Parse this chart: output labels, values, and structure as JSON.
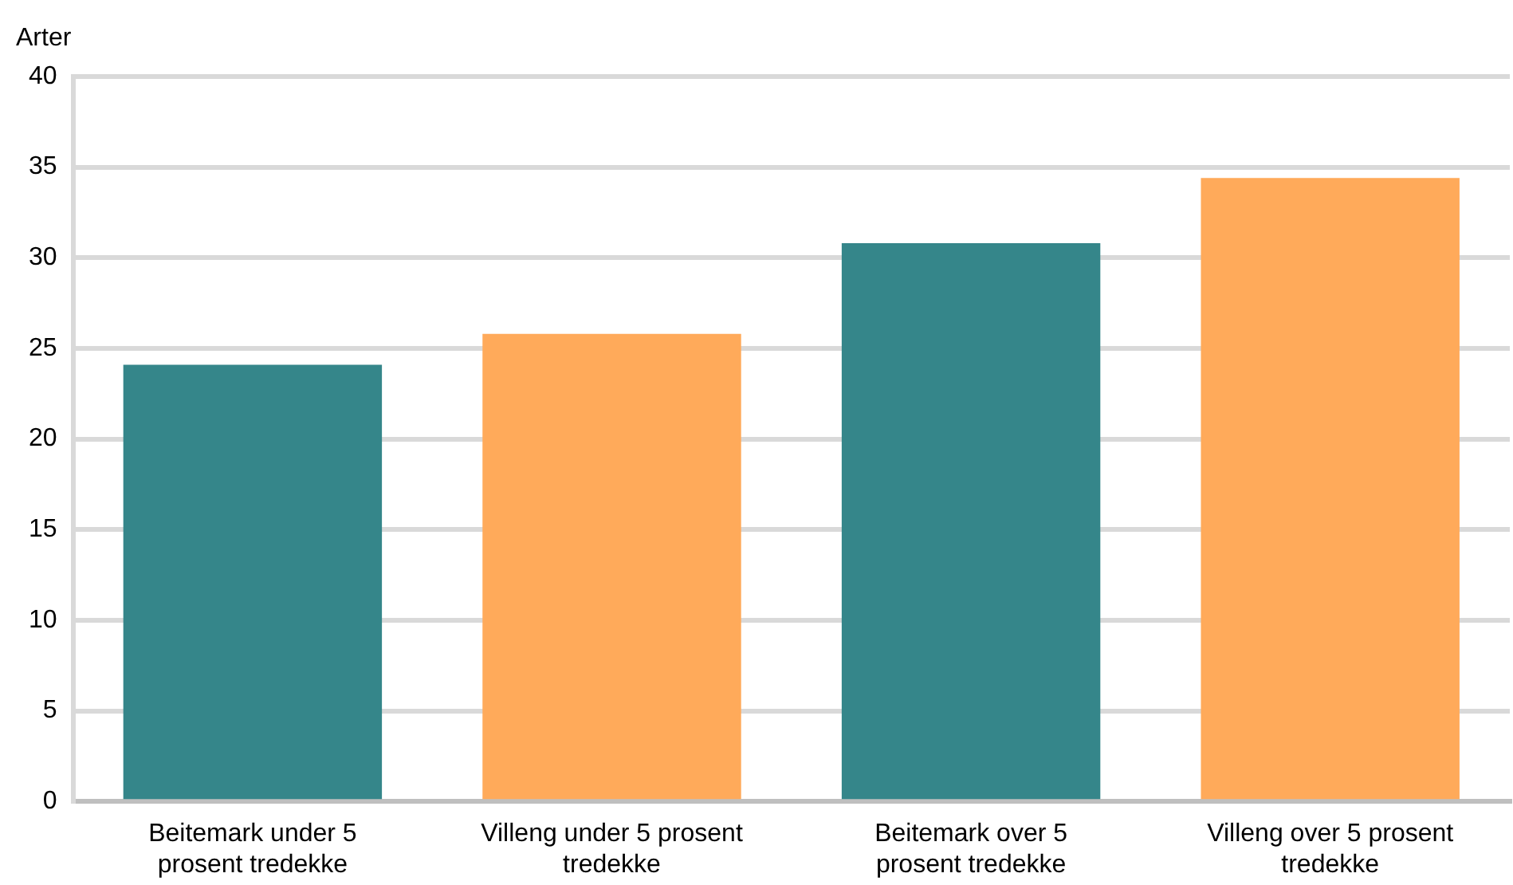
{
  "chart_data": {
    "type": "bar",
    "ylabel": "Arter",
    "categories": [
      "Beitemark under 5 prosent tredekke",
      "Villeng under 5 prosent tredekke",
      "Beitemark over 5 prosent tredekke",
      "Villeng over 5 prosent tredekke"
    ],
    "values": [
      24.1,
      25.8,
      30.8,
      34.4
    ],
    "colors": [
      "#35868a",
      "#ffaa5a",
      "#35868a",
      "#ffaa5a"
    ],
    "ylim": [
      0,
      40
    ],
    "yticks": [
      0,
      5,
      10,
      15,
      20,
      25,
      30,
      35,
      40
    ],
    "grid": "y",
    "legend": false
  }
}
